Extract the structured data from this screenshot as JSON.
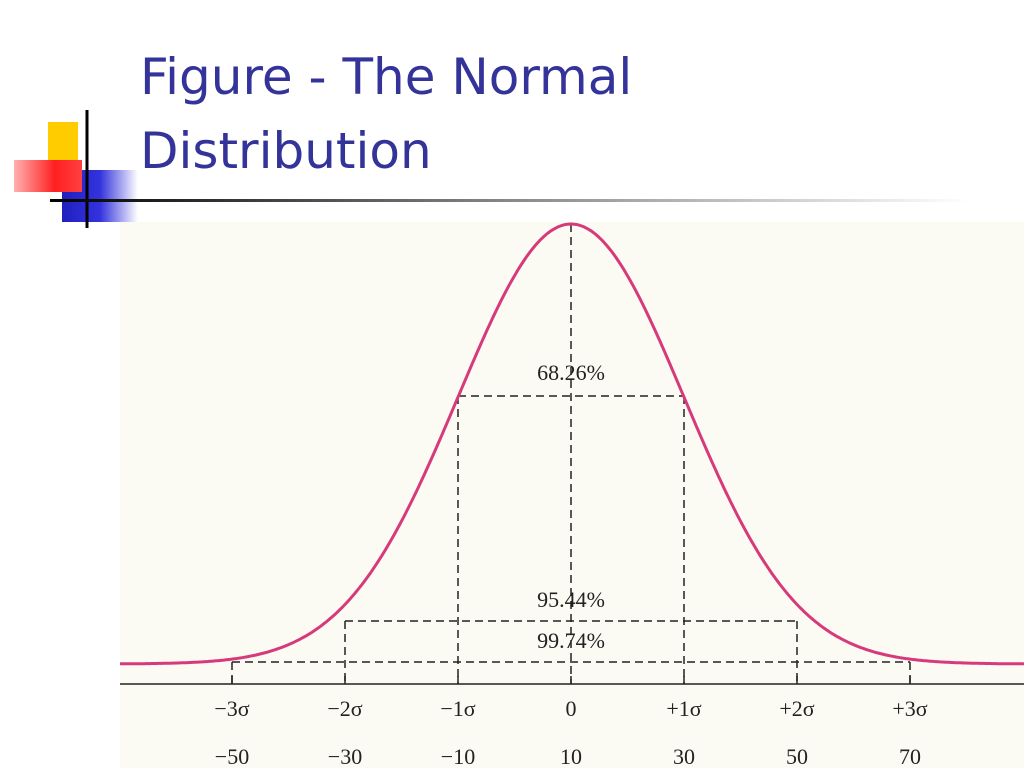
{
  "slide": {
    "title_lines": [
      "Figure - The Normal",
      "Distribution"
    ]
  },
  "figure": {
    "percent_labels": [
      "68.26%",
      "95.44%",
      "99.74%"
    ],
    "sigma_labels": [
      "−3σ",
      "−2σ",
      "−1σ",
      "0",
      "+1σ",
      "+2σ",
      "+3σ"
    ],
    "value_labels": [
      "−50",
      "−30",
      "−10",
      "10",
      "30",
      "50",
      "70"
    ]
  }
}
